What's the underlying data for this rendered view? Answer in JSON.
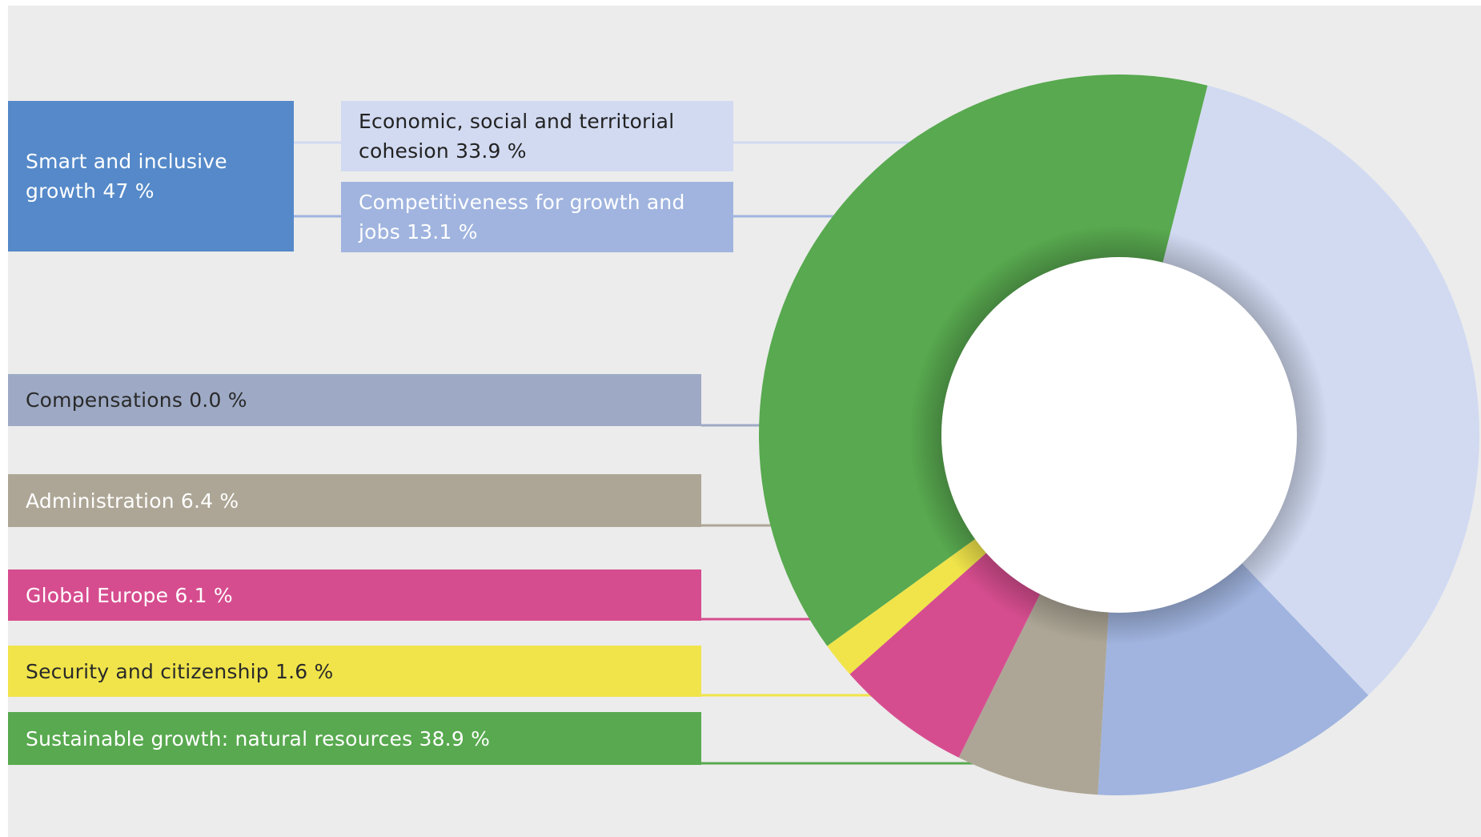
{
  "chart_data": {
    "type": "pie",
    "style": "donut",
    "groups": [
      {
        "label": "Smart and inclusive growth 47 %",
        "value": 47,
        "color": "#5589c9",
        "text_color": "#ffffff",
        "members": [
          "Economic, social and territorial cohesion",
          "Competitiveness for growth and jobs"
        ]
      }
    ],
    "slices": [
      {
        "name": "Economic, social and territorial cohesion",
        "value": 33.9,
        "label": "Economic, social and territorial cohesion 33.9 %",
        "color": "#d1daf1",
        "text_color": "#222222"
      },
      {
        "name": "Competitiveness for growth and jobs",
        "value": 13.1,
        "label": "Competitiveness for growth and jobs 13.1 %",
        "color": "#a0b4df",
        "text_color": "#ffffff"
      },
      {
        "name": "Compensations",
        "value": 0.0,
        "label": "Compensations 0.0 %",
        "color": "#9eaac5",
        "text_color": "#2a2a2a"
      },
      {
        "name": "Administration",
        "value": 6.4,
        "label": "Administration 6.4 %",
        "color": "#ada696",
        "text_color": "#ffffff"
      },
      {
        "name": "Global Europe",
        "value": 6.1,
        "label": "Global Europe 6.1 %",
        "color": "#d64d8f",
        "text_color": "#ffffff"
      },
      {
        "name": "Security and citizenship",
        "value": 1.6,
        "label": "Security and citizenship 1.6 %",
        "color": "#f0e44a",
        "text_color": "#2a2a2a"
      },
      {
        "name": "Sustainable growth: natural resources",
        "value": 38.9,
        "label": "Sustainable growth: natural resources 38.9 %",
        "color": "#58a94f",
        "text_color": "#ffffff"
      }
    ]
  }
}
